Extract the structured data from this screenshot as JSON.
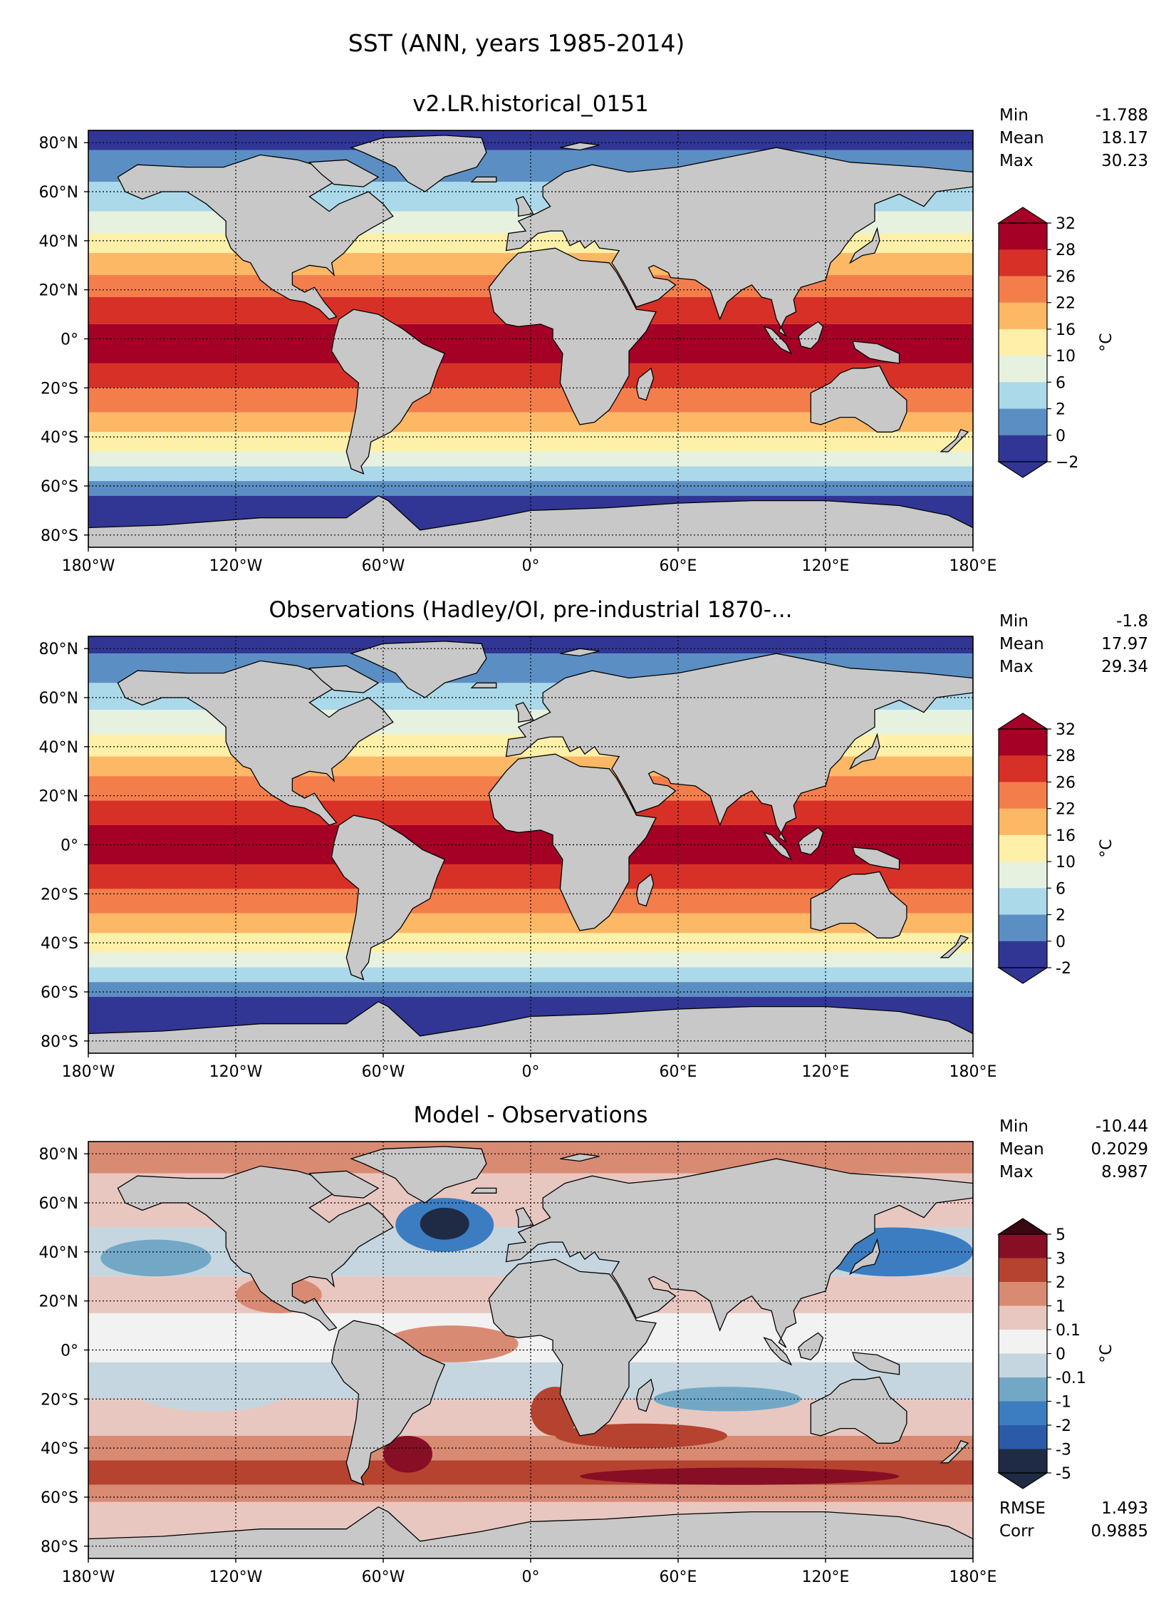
{
  "figure": {
    "suptitle": "SST (ANN, years 1985-2014)",
    "colors": {
      "land": "#c8c8c8",
      "abs_levels": [
        "#313695",
        "#5b8fc4",
        "#abd9e9",
        "#e6f2df",
        "#fef0a8",
        "#fdb865",
        "#f47e4b",
        "#d73027",
        "#a50026"
      ],
      "diff_levels": [
        "#1f2a44",
        "#2b5aa8",
        "#3b7dc0",
        "#72a8c5",
        "#c5d6e0",
        "#f2f2f2",
        "#e8c7c0",
        "#d98a73",
        "#b5432f",
        "#860e25",
        "#3a0812"
      ]
    }
  },
  "chart_data": [
    {
      "type": "heatmap",
      "title": "v2.LR.historical_0151",
      "stats": [
        {
          "label": "Min",
          "value": "-1.788"
        },
        {
          "label": "Mean",
          "value": "18.17"
        },
        {
          "label": "Max",
          "value": "30.23"
        }
      ],
      "colorbar": {
        "ticks": [
          "32",
          "28",
          "26",
          "22",
          "16",
          "10",
          "6",
          "2",
          "0",
          "−2"
        ],
        "unit_label": "°C"
      },
      "x_ticks": [
        "180°W",
        "120°W",
        "60°W",
        "0°",
        "60°E",
        "120°E",
        "180°E"
      ],
      "y_ticks": [
        "80°N",
        "60°N",
        "40°N",
        "20°N",
        "0°",
        "20°S",
        "40°S",
        "60°S",
        "80°S"
      ],
      "xlim": [
        -180,
        180
      ],
      "ylim": [
        -85,
        85
      ],
      "grid": true
    },
    {
      "type": "heatmap",
      "title": "Observations (Hadley/OI, pre-industrial 1870-...",
      "stats": [
        {
          "label": "Min",
          "value": "-1.8"
        },
        {
          "label": "Mean",
          "value": "17.97"
        },
        {
          "label": "Max",
          "value": "29.34"
        }
      ],
      "colorbar": {
        "ticks": [
          "32",
          "28",
          "26",
          "22",
          "16",
          "10",
          "6",
          "2",
          "0",
          "-2"
        ],
        "unit_label": "°C"
      },
      "x_ticks": [
        "180°W",
        "120°W",
        "60°W",
        "0°",
        "60°E",
        "120°E",
        "180°E"
      ],
      "y_ticks": [
        "80°N",
        "60°N",
        "40°N",
        "20°N",
        "0°",
        "20°S",
        "40°S",
        "60°S",
        "80°S"
      ],
      "xlim": [
        -180,
        180
      ],
      "ylim": [
        -85,
        85
      ],
      "grid": true
    },
    {
      "type": "heatmap",
      "title": "Model - Observations",
      "stats": [
        {
          "label": "Min",
          "value": "-10.44"
        },
        {
          "label": "Mean",
          "value": "0.2029"
        },
        {
          "label": "Max",
          "value": "8.987"
        }
      ],
      "extra_stats": [
        {
          "label": "RMSE",
          "value": "1.493"
        },
        {
          "label": "Corr",
          "value": "0.9885"
        }
      ],
      "colorbar": {
        "ticks": [
          "5",
          "3",
          "2",
          "1",
          "0.1",
          "0",
          "-0.1",
          "-1",
          "-2",
          "-3",
          "-5"
        ],
        "unit_label": "°C"
      },
      "x_ticks": [
        "180°W",
        "120°W",
        "60°W",
        "0°",
        "60°E",
        "120°E",
        "180°E"
      ],
      "y_ticks": [
        "80°N",
        "60°N",
        "40°N",
        "20°N",
        "0°",
        "20°S",
        "40°S",
        "60°S",
        "80°S"
      ],
      "xlim": [
        -180,
        180
      ],
      "ylim": [
        -85,
        85
      ],
      "grid": true
    }
  ]
}
